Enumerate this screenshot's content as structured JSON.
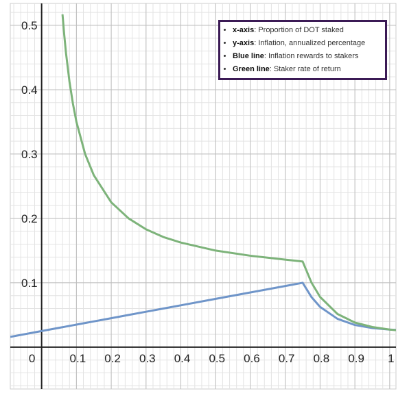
{
  "chart_data": {
    "type": "line",
    "x": [
      -0.09,
      0,
      0.06,
      0.065,
      0.07,
      0.08,
      0.09,
      0.1,
      0.125,
      0.15,
      0.2,
      0.25,
      0.3,
      0.35,
      0.4,
      0.5,
      0.6,
      0.7,
      0.75,
      0.775,
      0.8,
      0.85,
      0.9,
      0.95,
      1,
      1.018
    ],
    "series": [
      {
        "name": "Blue line",
        "color": "#6f95c9",
        "values": [
          0.016,
          0.025,
          0.031,
          0.0315,
          0.032,
          0.033,
          0.034,
          0.035,
          0.0375,
          0.04,
          0.045,
          0.05,
          0.055,
          0.06,
          0.065,
          0.075,
          0.085,
          0.095,
          0.1,
          0.078,
          0.0625,
          0.044,
          0.0344,
          0.0297,
          0.0273,
          0.0268
        ]
      },
      {
        "name": "Green line",
        "color": "#7db37a",
        "values": [
          null,
          null,
          0.517,
          0.485,
          0.457,
          0.4125,
          0.378,
          0.35,
          0.3,
          0.267,
          0.225,
          0.2,
          0.183,
          0.171,
          0.1625,
          0.15,
          0.142,
          0.136,
          0.133,
          0.1006,
          0.078,
          0.0515,
          0.0382,
          0.0313,
          0.0273,
          0.0263
        ]
      }
    ],
    "xlim": [
      -0.09,
      1.018
    ],
    "ylim": [
      -0.065,
      0.534
    ],
    "xticks": [
      0,
      0.1,
      0.2,
      0.3,
      0.4,
      0.5,
      0.6,
      0.7,
      0.8,
      0.9,
      1
    ],
    "yticks": [
      0.1,
      0.2,
      0.3,
      0.4,
      0.5
    ],
    "grid": true,
    "legend": {
      "position": "top-right",
      "border_color": "#3b1a55",
      "items": [
        {
          "label": "x-axis",
          "text": ": Proportion of DOT staked"
        },
        {
          "label": "y-axis",
          "text": ": Inflation, annualized percentage"
        },
        {
          "label": "Blue line",
          "text": ": Inflation rewards to stakers"
        },
        {
          "label": "Green line",
          "text": ": Staker rate of return"
        }
      ]
    }
  }
}
